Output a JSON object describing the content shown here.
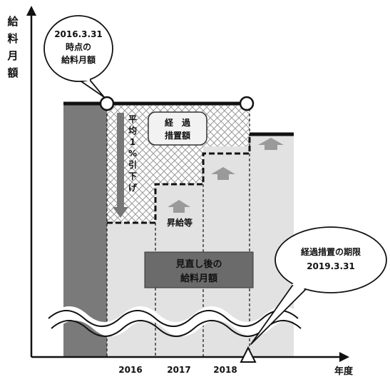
{
  "axes": {
    "y_label_chars": [
      "給",
      "料",
      "月",
      "額"
    ],
    "x_label": "年度",
    "years": [
      "2016",
      "2017",
      "2018"
    ]
  },
  "callouts": {
    "start": {
      "line1": "2016.3.31",
      "line2": "時点の",
      "line3": "給料月額"
    },
    "end": {
      "line1": "経過措置の期限",
      "line2": "2019.3.31"
    }
  },
  "labels": {
    "measure_line1": "経　過",
    "measure_line2": "措置額",
    "average_cut_chars": [
      "平",
      "均",
      "1",
      "%",
      "引",
      "下",
      "げ"
    ],
    "raise": "昇給等",
    "revised_line1": "見直し後の",
    "revised_line2": "給料月額"
  },
  "colors": {
    "dark_bar": "#7a7a7a",
    "light_fill": "#e2e2e2",
    "revised_box": "#6b6b6b",
    "arrow": "#9a9a9a"
  }
}
